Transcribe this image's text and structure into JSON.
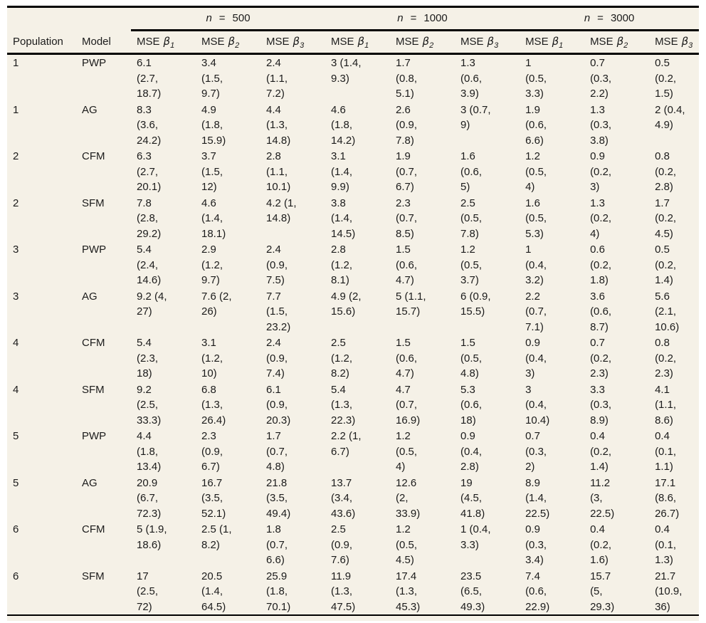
{
  "colors": {
    "sheet_bg": "#f5f1e7",
    "rule": "#000000",
    "text": "#1b1b1b"
  },
  "table": {
    "left_headers": [
      "Population",
      "Model"
    ],
    "groups": [
      {
        "var": "n",
        "op": "=",
        "value": "500"
      },
      {
        "var": "n",
        "op": "=",
        "value": "1000"
      },
      {
        "var": "n",
        "op": "=",
        "value": "3000"
      }
    ],
    "mse_header": {
      "prefix": "MSE",
      "symbol": "β",
      "subs": [
        "1",
        "2",
        "3"
      ]
    },
    "rows": [
      {
        "population": "1",
        "model": "PWP",
        "cells": [
          "6.1 (2.7, 18.7)",
          "3.4 (1.5, 9.7)",
          "2.4 (1.1, 7.2)",
          "3 (1.4, 9.3)",
          "1.7 (0.8, 5.1)",
          "1.3 (0.6, 3.9)",
          "1 (0.5, 3.3)",
          "0.7 (0.3, 2.2)",
          "0.5 (0.2, 1.5)"
        ]
      },
      {
        "population": "1",
        "model": "AG",
        "cells": [
          "8.3 (3.6, 24.2)",
          "4.9 (1.8, 15.9)",
          "4.4 (1.3, 14.8)",
          "4.6 (1.8, 14.2)",
          "2.6 (0.9, 7.8)",
          "3 (0.7, 9)",
          "1.9 (0.6, 6.6)",
          "1.3 (0.3, 3.8)",
          "2 (0.4, 4.9)"
        ]
      },
      {
        "population": "2",
        "model": "CFM",
        "cells": [
          "6.3 (2.7, 20.1)",
          "3.7 (1.5, 12)",
          "2.8 (1.1, 10.1)",
          "3.1 (1.4, 9.9)",
          "1.9 (0.7, 6.7)",
          "1.6 (0.6, 5)",
          "1.2 (0.5, 4)",
          "0.9 (0.2, 3)",
          "0.8 (0.2, 2.8)"
        ]
      },
      {
        "population": "2",
        "model": "SFM",
        "cells": [
          "7.8 (2.8, 29.2)",
          "4.6 (1.4, 18.1)",
          "4.2 (1, 14.8)",
          "3.8 (1.4, 14.5)",
          "2.3 (0.7, 8.5)",
          "2.5 (0.5, 7.8)",
          "1.6 (0.5, 5.3)",
          "1.3 (0.2, 4)",
          "1.7 (0.2, 4.5)"
        ]
      },
      {
        "population": "3",
        "model": "PWP",
        "cells": [
          "5.4 (2.4, 14.6)",
          "2.9 (1.2, 9.7)",
          "2.4 (0.9, 7.5)",
          "2.8 (1.2, 8.1)",
          "1.5 (0.6, 4.7)",
          "1.2 (0.5, 3.7)",
          "1 (0.4, 3.2)",
          "0.6 (0.2, 1.8)",
          "0.5 (0.2, 1.4)"
        ]
      },
      {
        "population": "3",
        "model": "AG",
        "cells": [
          "9.2 (4, 27)",
          "7.6 (2, 26)",
          "7.7 (1.5, 23.2)",
          "4.9 (2, 15.6)",
          "5 (1.1, 15.7)",
          "6 (0.9, 15.5)",
          "2.2 (0.7, 7.1)",
          "3.6 (0.6, 8.7)",
          "5.6 (2.1, 10.6)"
        ]
      },
      {
        "population": "4",
        "model": "CFM",
        "cells": [
          "5.4 (2.3, 18)",
          "3.1 (1.2, 10)",
          "2.4 (0.9, 7.4)",
          "2.5 (1.2, 8.2)",
          "1.5 (0.6, 4.7)",
          "1.5 (0.5, 4.8)",
          "0.9 (0.4, 3)",
          "0.7 (0.2, 2.3)",
          "0.8 (0.2, 2.3)"
        ]
      },
      {
        "population": "4",
        "model": "SFM",
        "cells": [
          "9.2 (2.5, 33.3)",
          "6.8 (1.3, 26.4)",
          "6.1 (0.9, 20.3)",
          "5.4 (1.3, 22.3)",
          "4.7 (0.7, 16.9)",
          "5.3 (0.6, 18)",
          "3 (0.4, 10.4)",
          "3.3 (0.3, 8.9)",
          "4.1 (1.1, 8.6)"
        ]
      },
      {
        "population": "5",
        "model": "PWP",
        "cells": [
          "4.4 (1.8, 13.4)",
          "2.3 (0.9, 6.7)",
          "1.7 (0.7, 4.8)",
          "2.2 (1, 6.7)",
          "1.2 (0.5, 4)",
          "0.9 (0.4, 2.8)",
          "0.7 (0.3, 2)",
          "0.4 (0.2, 1.4)",
          "0.4 (0.1, 1.1)"
        ]
      },
      {
        "population": "5",
        "model": "AG",
        "cells": [
          "20.9 (6.7, 72.3)",
          "16.7 (3.5, 52.1)",
          "21.8 (3.5, 49.4)",
          "13.7 (3.4, 43.6)",
          "12.6 (2, 33.9)",
          "19 (4.5, 41.8)",
          "8.9 (1.4, 22.5)",
          "11.2 (3, 22.5)",
          "17.1 (8.6, 26.7)"
        ]
      },
      {
        "population": "6",
        "model": "CFM",
        "cells": [
          "5 (1.9, 18.6)",
          "2.5 (1, 8.2)",
          "1.8 (0.7, 6.6)",
          "2.5 (0.9, 7.6)",
          "1.2 (0.5, 4.5)",
          "1 (0.4, 3.3)",
          "0.9 (0.3, 3.4)",
          "0.4 (0.2, 1.6)",
          "0.4 (0.1, 1.3)"
        ]
      },
      {
        "population": "6",
        "model": "SFM",
        "cells": [
          "17 (2.5, 72)",
          "20.5 (1.4, 64.5)",
          "25.9 (1.8, 70.1)",
          "11.9 (1.3, 47.5)",
          "17.4 (1.3, 45.3)",
          "23.5 (6.5, 49.3)",
          "7.4 (0.6, 22.9)",
          "15.7 (5, 29.3)",
          "21.7 (10.9, 36)"
        ]
      }
    ]
  }
}
